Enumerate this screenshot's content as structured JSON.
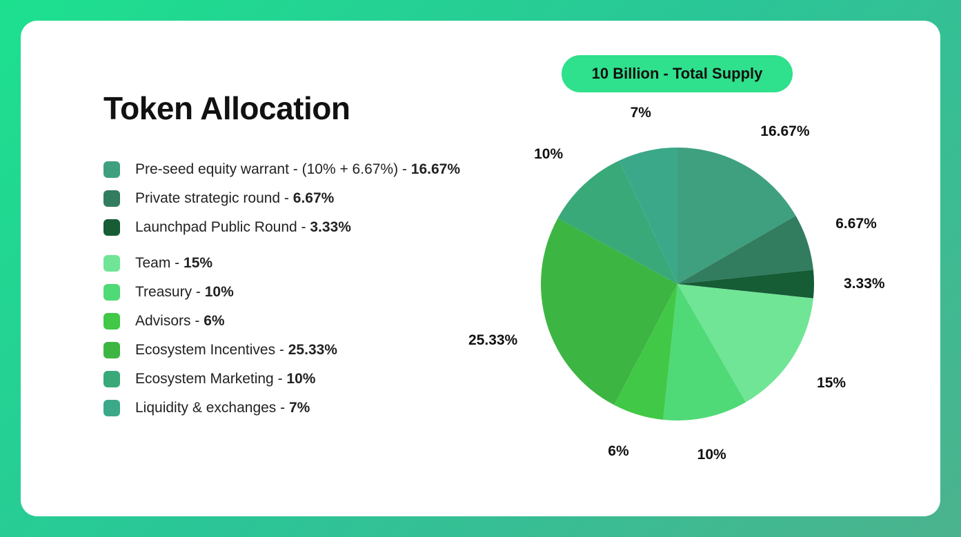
{
  "title": "Token Allocation",
  "supply_pill": "10 Billion - Total Supply",
  "legend_groups": [
    [
      {
        "label": "Pre-seed equity warrant - (10% + 6.67%) - ",
        "pct": "16.67%",
        "color": "#3fa07f"
      },
      {
        "label": "Private strategic round - ",
        "pct": "6.67%",
        "color": "#327d5f"
      },
      {
        "label": "Launchpad Public Round - ",
        "pct": "3.33%",
        "color": "#165c35"
      }
    ],
    [
      {
        "label": "Team - ",
        "pct": "15%",
        "color": "#70e596"
      },
      {
        "label": "Treasury - ",
        "pct": "10%",
        "color": "#50d977"
      },
      {
        "label": "Advisors - ",
        "pct": "6%",
        "color": "#42c847"
      },
      {
        "label": "Ecosystem Incentives - ",
        "pct": "25.33%",
        "color": "#3db542"
      },
      {
        "label": "Ecosystem Marketing - ",
        "pct": "10%",
        "color": "#3aa97a"
      },
      {
        "label": "Liquidity & exchanges - ",
        "pct": "7%",
        "color": "#3ba889"
      }
    ]
  ],
  "pie": {
    "type": "pie",
    "radius": 198,
    "start_angle_deg": -90,
    "slices": [
      {
        "label": "16.67%",
        "value": 16.67,
        "color": "#3fa07f"
      },
      {
        "label": "6.67%",
        "value": 6.67,
        "color": "#327d5f"
      },
      {
        "label": "3.33%",
        "value": 3.33,
        "color": "#165c35"
      },
      {
        "label": "15%",
        "value": 15,
        "color": "#70e596"
      },
      {
        "label": "10%",
        "value": 10,
        "color": "#50d977"
      },
      {
        "label": "6%",
        "value": 6,
        "color": "#42c847"
      },
      {
        "label": "25.33%",
        "value": 25.33,
        "color": "#3db542"
      },
      {
        "label": "10%",
        "value": 10,
        "color": "#3aa97a"
      },
      {
        "label": "7%",
        "value": 7,
        "color": "#3ba889"
      }
    ],
    "label_fontsize": 21,
    "label_fontweight": 700,
    "label_color": "#111111",
    "label_radius_factor": 1.22,
    "background_color": "#ffffff"
  }
}
